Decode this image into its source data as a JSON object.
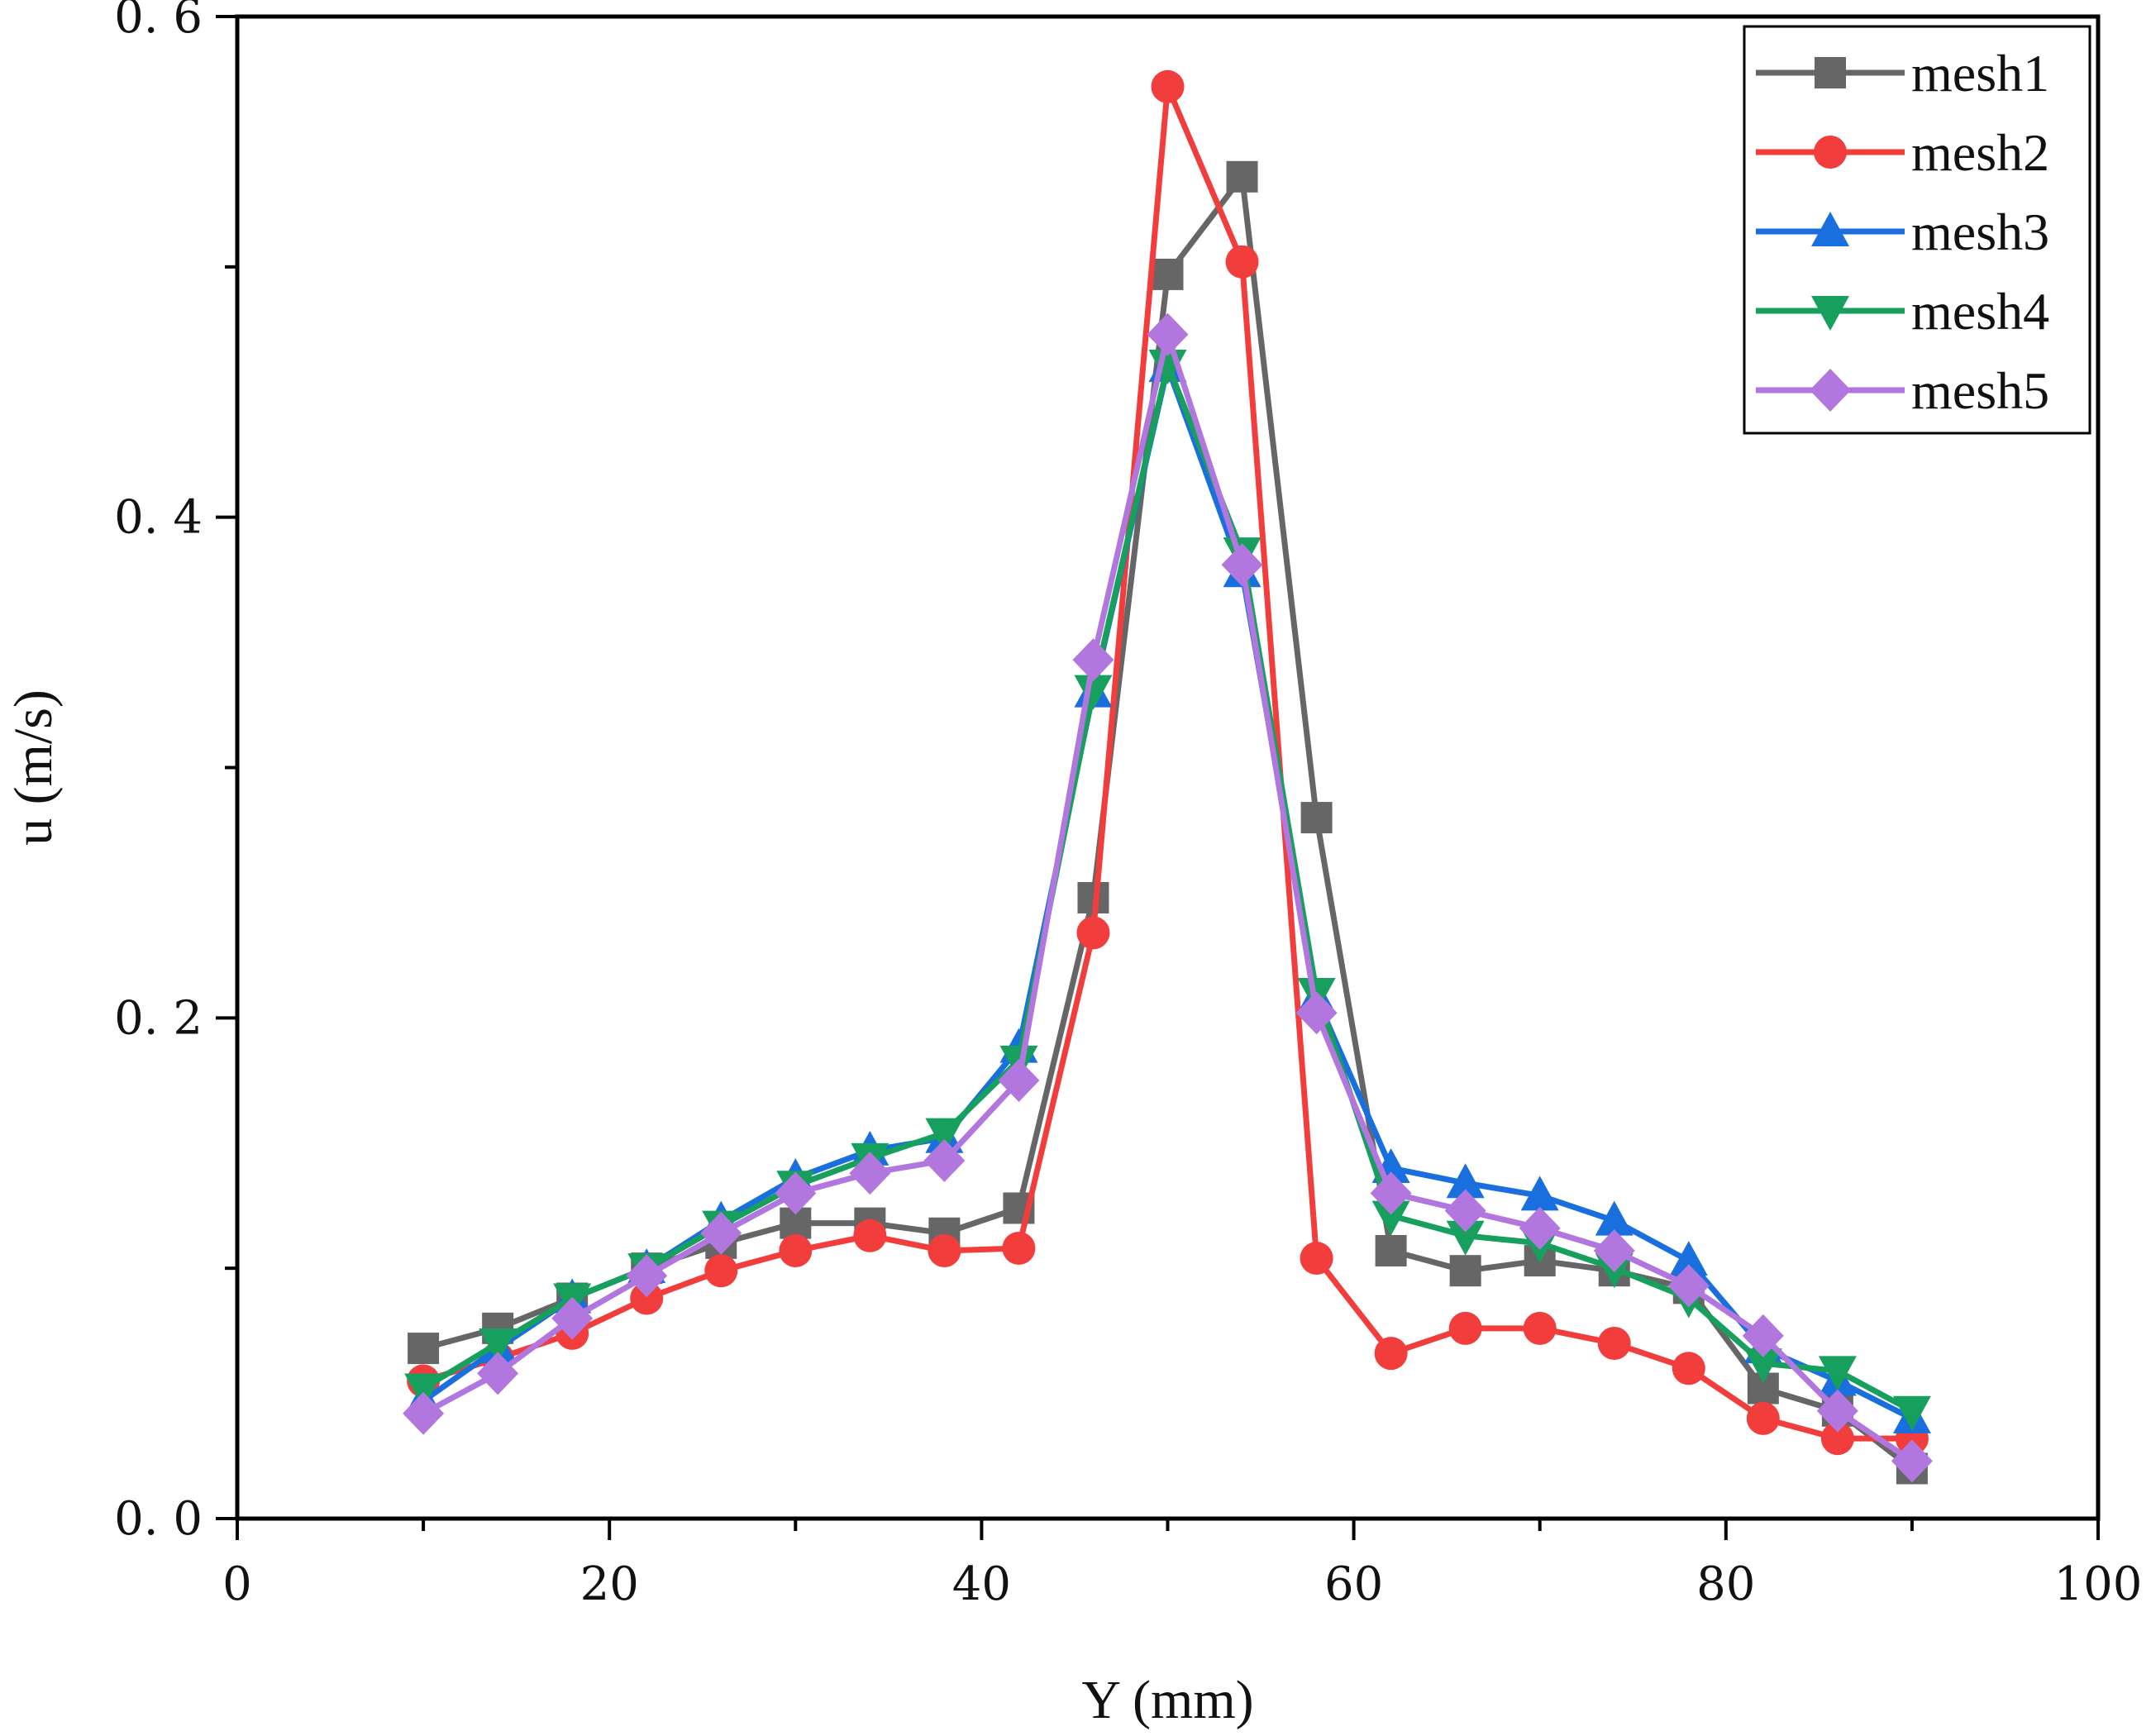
{
  "chart_data": {
    "type": "line",
    "title": "",
    "xlabel": "Y (mm)",
    "ylabel": "u (m/s)",
    "xlim": [
      0,
      100
    ],
    "ylim": [
      0,
      0.6
    ],
    "xticks": [
      0,
      20,
      40,
      60,
      80,
      100
    ],
    "xtick_labels": [
      "0",
      "20",
      "40",
      "60",
      "80",
      "100"
    ],
    "yticks": [
      0.0,
      0.2,
      0.4,
      0.6
    ],
    "ytick_labels": [
      "0. 0",
      "0. 2",
      "0. 4",
      "0. 6"
    ],
    "grid": false,
    "legend_position": "top-right",
    "x": [
      10,
      14,
      18,
      22,
      26,
      30,
      34,
      38,
      42,
      46,
      50,
      54,
      58,
      62,
      66,
      70,
      74,
      78,
      82,
      86,
      90
    ],
    "series": [
      {
        "name": "mesh1",
        "color": "#666666",
        "marker": "square",
        "values": [
          0.068,
          0.076,
          0.088,
          0.1,
          0.11,
          0.118,
          0.118,
          0.114,
          0.124,
          0.248,
          0.497,
          0.536,
          0.28,
          0.107,
          0.099,
          0.103,
          0.099,
          0.092,
          0.052,
          0.043,
          0.02
        ]
      },
      {
        "name": "mesh2",
        "color": "#f23d3d",
        "marker": "circle",
        "values": [
          0.055,
          0.064,
          0.074,
          0.088,
          0.099,
          0.107,
          0.113,
          0.107,
          0.108,
          0.234,
          0.572,
          0.502,
          0.104,
          0.066,
          0.076,
          0.076,
          0.07,
          0.06,
          0.04,
          0.032,
          0.032
        ]
      },
      {
        "name": "mesh3",
        "color": "#1a6fdf",
        "marker": "triangle-up",
        "values": [
          0.047,
          0.068,
          0.088,
          0.1,
          0.119,
          0.136,
          0.147,
          0.152,
          0.188,
          0.33,
          0.46,
          0.378,
          0.208,
          0.14,
          0.134,
          0.129,
          0.119,
          0.103,
          0.068,
          0.055,
          0.04
        ]
      },
      {
        "name": "mesh4",
        "color": "#17a05d",
        "marker": "triangle-down",
        "values": [
          0.052,
          0.07,
          0.088,
          0.1,
          0.117,
          0.133,
          0.144,
          0.154,
          0.183,
          0.331,
          0.461,
          0.386,
          0.21,
          0.121,
          0.113,
          0.11,
          0.1,
          0.088,
          0.062,
          0.059,
          0.043
        ]
      },
      {
        "name": "mesh5",
        "color": "#b177de",
        "marker": "diamond",
        "values": [
          0.042,
          0.058,
          0.08,
          0.097,
          0.114,
          0.13,
          0.138,
          0.143,
          0.175,
          0.343,
          0.473,
          0.381,
          0.202,
          0.13,
          0.123,
          0.116,
          0.107,
          0.093,
          0.073,
          0.043,
          0.023
        ]
      }
    ]
  }
}
